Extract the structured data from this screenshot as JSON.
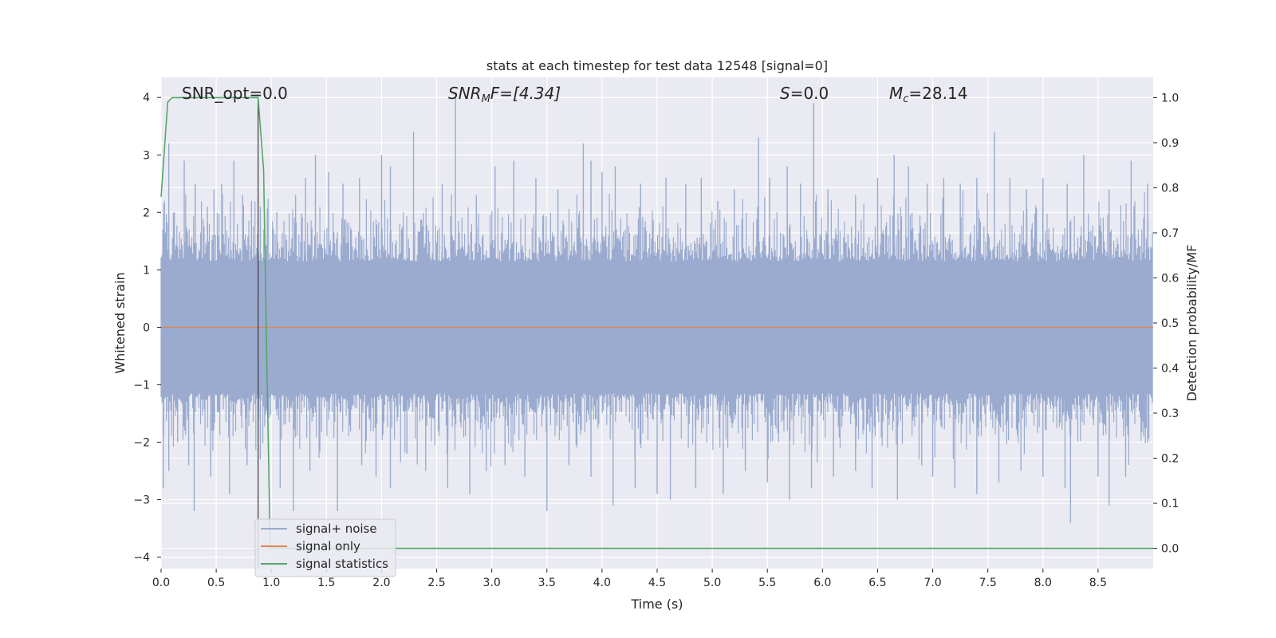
{
  "chart_data": {
    "type": "line",
    "title": "stats at each timestep for test data 12548 [signal=0]",
    "xlabel": "Time (s)",
    "ylabel": "Whitened strain",
    "ylabel_right": "Detection probability/MF",
    "xlim": [
      0.0,
      9.0
    ],
    "ylim": [
      -4.2,
      4.35
    ],
    "ylim_right": [
      -0.045,
      1.045
    ],
    "x_ticks": [
      "0.0",
      "0.5",
      "1.0",
      "1.5",
      "2.0",
      "2.5",
      "3.0",
      "3.5",
      "4.0",
      "4.5",
      "5.0",
      "5.5",
      "6.0",
      "6.5",
      "7.0",
      "7.5",
      "8.0",
      "8.5"
    ],
    "y_ticks": [
      "4",
      "3",
      "2",
      "1",
      "0",
      "−1",
      "−2",
      "−3",
      "−4"
    ],
    "y_ticks_right": [
      "1.0",
      "0.9",
      "0.8",
      "0.7",
      "0.6",
      "0.5",
      "0.4",
      "0.3",
      "0.2",
      "0.1",
      "0.0"
    ],
    "grid": true,
    "legend_position": "lower-left",
    "annotations": {
      "snr_opt": "SNR_opt=0.0",
      "snr_mf_sym": "SNR",
      "snr_mf_sub": "M",
      "snr_mf_rest": "F=[4.34]",
      "s_sym": "S",
      "s_rest": "=0.0",
      "mc_sym": "M",
      "mc_sub": "c",
      "mc_rest": "=28.14"
    },
    "vline_x": 0.88,
    "series": [
      {
        "name": "signal+ noise",
        "color": "#9aabcf",
        "description_level": "noise band approx ±1.5 with spikes",
        "spikes_pos": [
          [
            0.03,
            2.2
          ],
          [
            0.07,
            3.2
          ],
          [
            0.12,
            2.0
          ],
          [
            0.21,
            2.9
          ],
          [
            0.31,
            2.5
          ],
          [
            0.42,
            2.1
          ],
          [
            0.48,
            2.4
          ],
          [
            0.55,
            2.5
          ],
          [
            0.66,
            2.9
          ],
          [
            0.74,
            2.3
          ],
          [
            0.82,
            2.2
          ],
          [
            0.9,
            2.1
          ],
          [
            1.05,
            2.0
          ],
          [
            1.22,
            2.3
          ],
          [
            1.31,
            2.6
          ],
          [
            1.4,
            3.0
          ],
          [
            1.52,
            2.7
          ],
          [
            1.65,
            2.5
          ],
          [
            1.8,
            2.6
          ],
          [
            2.0,
            3.0
          ],
          [
            2.08,
            2.8
          ],
          [
            2.29,
            3.4
          ],
          [
            2.55,
            2.5
          ],
          [
            2.67,
            4.0
          ],
          [
            2.86,
            2.3
          ],
          [
            3.03,
            2.8
          ],
          [
            3.2,
            2.9
          ],
          [
            3.4,
            2.6
          ],
          [
            3.6,
            2.4
          ],
          [
            3.83,
            3.2
          ],
          [
            3.9,
            2.9
          ],
          [
            4.0,
            2.7
          ],
          [
            4.12,
            2.8
          ],
          [
            4.35,
            2.5
          ],
          [
            4.58,
            2.6
          ],
          [
            4.76,
            2.5
          ],
          [
            4.9,
            2.6
          ],
          [
            5.05,
            2.2
          ],
          [
            5.2,
            2.4
          ],
          [
            5.42,
            3.3
          ],
          [
            5.52,
            2.6
          ],
          [
            5.68,
            2.8
          ],
          [
            5.8,
            2.5
          ],
          [
            5.92,
            3.9
          ],
          [
            6.05,
            2.4
          ],
          [
            6.3,
            2.3
          ],
          [
            6.5,
            2.6
          ],
          [
            6.65,
            3.0
          ],
          [
            6.78,
            2.8
          ],
          [
            6.95,
            2.5
          ],
          [
            7.1,
            2.6
          ],
          [
            7.25,
            2.5
          ],
          [
            7.4,
            2.6
          ],
          [
            7.56,
            3.4
          ],
          [
            7.7,
            2.6
          ],
          [
            7.85,
            2.4
          ],
          [
            8.0,
            2.6
          ],
          [
            8.22,
            2.5
          ],
          [
            8.37,
            3.0
          ],
          [
            8.6,
            2.4
          ],
          [
            8.8,
            2.9
          ],
          [
            8.95,
            2.5
          ]
        ],
        "spikes_neg": [
          [
            0.02,
            -2.8
          ],
          [
            0.07,
            -2.5
          ],
          [
            0.15,
            -2.0
          ],
          [
            0.25,
            -2.4
          ],
          [
            0.3,
            -3.2
          ],
          [
            0.45,
            -2.6
          ],
          [
            0.62,
            -2.9
          ],
          [
            0.78,
            -2.4
          ],
          [
            0.9,
            -2.3
          ],
          [
            1.08,
            -2.8
          ],
          [
            1.2,
            -3.2
          ],
          [
            1.35,
            -2.5
          ],
          [
            1.6,
            -3.2
          ],
          [
            1.82,
            -2.4
          ],
          [
            1.95,
            -2.6
          ],
          [
            2.08,
            -2.8
          ],
          [
            2.23,
            -2.2
          ],
          [
            2.4,
            -2.5
          ],
          [
            2.6,
            -2.8
          ],
          [
            2.8,
            -2.9
          ],
          [
            2.95,
            -2.5
          ],
          [
            3.12,
            -2.4
          ],
          [
            3.3,
            -2.6
          ],
          [
            3.5,
            -3.2
          ],
          [
            3.7,
            -2.4
          ],
          [
            3.9,
            -2.6
          ],
          [
            4.1,
            -3.1
          ],
          [
            4.3,
            -2.8
          ],
          [
            4.5,
            -2.9
          ],
          [
            4.62,
            -3.0
          ],
          [
            4.85,
            -2.8
          ],
          [
            5.1,
            -2.9
          ],
          [
            5.3,
            -2.5
          ],
          [
            5.5,
            -2.7
          ],
          [
            5.7,
            -3.0
          ],
          [
            5.9,
            -2.8
          ],
          [
            6.1,
            -2.6
          ],
          [
            6.3,
            -2.5
          ],
          [
            6.45,
            -2.8
          ],
          [
            6.68,
            -3.0
          ],
          [
            6.9,
            -2.4
          ],
          [
            7.0,
            -2.6
          ],
          [
            7.2,
            -2.8
          ],
          [
            7.4,
            -2.9
          ],
          [
            7.6,
            -2.7
          ],
          [
            7.8,
            -2.5
          ],
          [
            8.0,
            -2.6
          ],
          [
            8.2,
            -2.8
          ],
          [
            8.25,
            -3.4
          ],
          [
            8.5,
            -2.6
          ],
          [
            8.6,
            -3.1
          ],
          [
            8.75,
            -2.6
          ],
          [
            8.95,
            -2.0
          ]
        ]
      },
      {
        "name": "signal only",
        "color": "#dd8452",
        "x": [
          0.0,
          9.0
        ],
        "y": [
          0.0,
          0.0
        ]
      },
      {
        "name": "signal statistics",
        "color": "#55a868",
        "axis": "right",
        "x": [
          0.0,
          0.06,
          0.1,
          0.2,
          0.5,
          0.88,
          0.93,
          0.96,
          0.99,
          1.2,
          5.0,
          8.5,
          9.0
        ],
        "y": [
          0.78,
          0.99,
          1.0,
          1.0,
          1.0,
          1.0,
          0.84,
          0.4,
          0.0,
          0.0,
          0.0,
          0.0,
          0.0
        ]
      }
    ]
  }
}
